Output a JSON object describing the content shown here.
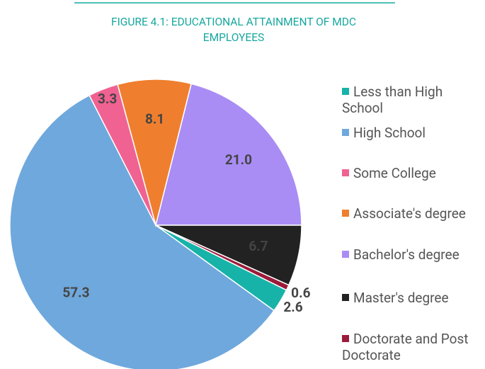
{
  "chart_data": {
    "type": "pie",
    "title": "FIGURE 4.1: EDUCATIONAL ATTAINMENT OF MDC EMPLOYEES",
    "categories": [
      "Less than High School",
      "High School",
      "Some College",
      "Associate's degree",
      "Bachelor's degree",
      "Master's degree",
      "Doctorate and Post Doctorate"
    ],
    "values": [
      2.6,
      57.3,
      3.3,
      8.1,
      21.0,
      6.7,
      0.6
    ],
    "value_labels": [
      "2.6",
      "57.3",
      "3.3",
      "8.1",
      "21.0",
      "6.7",
      "0.6"
    ],
    "colors": [
      "#17b3a8",
      "#6fa8dc",
      "#f06292",
      "#ef7f2e",
      "#a98df5",
      "#222222",
      "#9c1b3a"
    ],
    "legend": "right"
  }
}
